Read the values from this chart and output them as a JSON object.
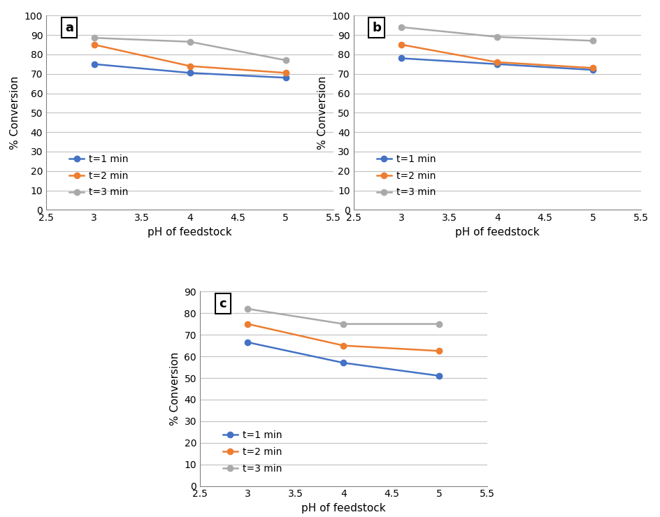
{
  "subplots": [
    {
      "label": "a",
      "pH": [
        3,
        4,
        5
      ],
      "t1": [
        75,
        70.5,
        68
      ],
      "t2": [
        85,
        74,
        70.5
      ],
      "t3": [
        88.5,
        86.5,
        77
      ],
      "ylim": [
        0,
        100
      ],
      "yticks": [
        0,
        10,
        20,
        30,
        40,
        50,
        60,
        70,
        80,
        90,
        100
      ],
      "xlim": [
        2.5,
        5.5
      ],
      "xticks": [
        2.5,
        3.0,
        3.5,
        4.0,
        4.5,
        5.0,
        5.5
      ]
    },
    {
      "label": "b",
      "pH": [
        3,
        4,
        5
      ],
      "t1": [
        78,
        75,
        72
      ],
      "t2": [
        85,
        76,
        73
      ],
      "t3": [
        94,
        89,
        87
      ],
      "ylim": [
        0,
        100
      ],
      "yticks": [
        0,
        10,
        20,
        30,
        40,
        50,
        60,
        70,
        80,
        90,
        100
      ],
      "xlim": [
        2.5,
        5.5
      ],
      "xticks": [
        2.5,
        3.0,
        3.5,
        4.0,
        4.5,
        5.0,
        5.5
      ]
    },
    {
      "label": "c",
      "pH": [
        3,
        4,
        5
      ],
      "t1": [
        66.5,
        57,
        51
      ],
      "t2": [
        75,
        65,
        62.5
      ],
      "t3": [
        82,
        75,
        75
      ],
      "ylim": [
        0,
        90
      ],
      "yticks": [
        0,
        10,
        20,
        30,
        40,
        50,
        60,
        70,
        80,
        90
      ],
      "xlim": [
        2.5,
        5.5
      ],
      "xticks": [
        2.5,
        3.0,
        3.5,
        4.0,
        4.5,
        5.0,
        5.5
      ]
    }
  ],
  "color_t1": "#4472C4",
  "color_t2": "#ED7D31",
  "color_t3": "#A9A9A9",
  "xlabel": "pH of feedstock",
  "ylabel": "% Conversion",
  "legend_labels": [
    "t=1 min",
    "t=2 min",
    "t=3 min"
  ],
  "marker": "o",
  "markersize": 6,
  "linewidth": 1.8,
  "grid_color": "#C0C0C0",
  "grid_lw": 0.8,
  "tick_fontsize": 10,
  "label_fontsize": 11,
  "legend_fontsize": 10
}
